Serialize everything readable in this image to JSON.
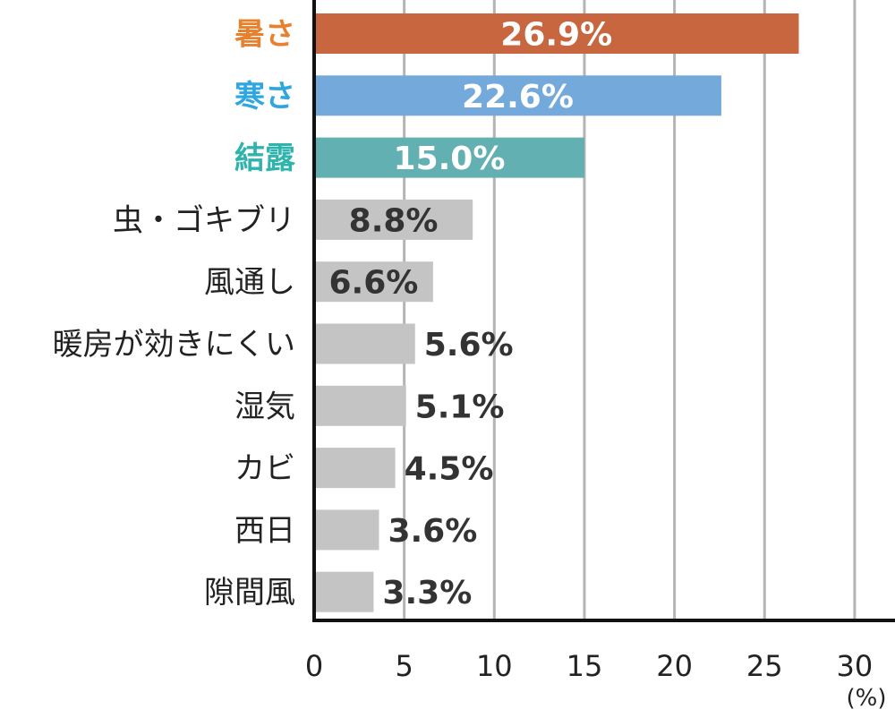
{
  "chart_data": {
    "type": "bar",
    "orientation": "horizontal",
    "categories": [
      "暑さ",
      "寒さ",
      "結露",
      "虫・ゴキブリ",
      "風通し",
      "暖房が効きにくい",
      "湿気",
      "カビ",
      "西日",
      "隙間風"
    ],
    "values": [
      26.9,
      22.6,
      15.0,
      8.8,
      6.6,
      5.6,
      5.1,
      4.5,
      3.6,
      3.3
    ],
    "value_labels": [
      "26.9%",
      "22.6%",
      "15.0%",
      "8.8%",
      "6.6%",
      "5.6%",
      "5.1%",
      "4.5%",
      "3.6%",
      "3.3%"
    ],
    "bar_colors": [
      "#c8673f",
      "#74a9dc",
      "#62b0b1",
      "#c4c4c4",
      "#c4c4c4",
      "#c4c4c4",
      "#c4c4c4",
      "#c4c4c4",
      "#c4c4c4",
      "#c4c4c4"
    ],
    "label_colors": [
      "#e8812e",
      "#2ea6e0",
      "#2fb3ad",
      "#222222",
      "#222222",
      "#222222",
      "#222222",
      "#222222",
      "#222222",
      "#222222"
    ],
    "xlim": [
      0,
      30
    ],
    "xticks": [
      0,
      5,
      10,
      15,
      20,
      25,
      30
    ],
    "xtick_labels": [
      "0",
      "5",
      "10",
      "15",
      "20",
      "25",
      "30"
    ],
    "x_unit": "(%)",
    "grid": true,
    "gridline_color": "#b4b4b4"
  }
}
